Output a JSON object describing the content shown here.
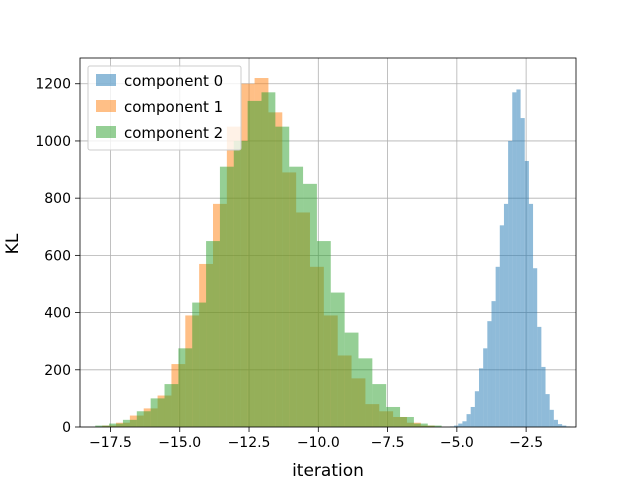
{
  "chart_data": {
    "type": "histogram",
    "title": "",
    "xlabel": "iteration",
    "ylabel": "KL",
    "xlim": [
      -18.6,
      -0.7
    ],
    "ylim": [
      0,
      1290
    ],
    "grid": true,
    "legend_position": "top-left",
    "x_ticks": [
      -17.5,
      -15.0,
      -12.5,
      -10.0,
      -7.5,
      -5.0,
      -2.5
    ],
    "x_tick_labels": [
      "−17.5",
      "−15.0",
      "−12.5",
      "−10.0",
      "−7.5",
      "−5.0",
      "−2.5"
    ],
    "y_ticks": [
      0,
      200,
      400,
      600,
      800,
      1000,
      1200
    ],
    "y_tick_labels": [
      "0",
      "200",
      "400",
      "600",
      "800",
      "1000",
      "1200"
    ],
    "series": [
      {
        "name": "component 0",
        "color": "#1f77b4",
        "alpha": 0.5,
        "bin_start": -5.25,
        "bin_width": 0.15,
        "counts": [
          2,
          5,
          12,
          20,
          45,
          70,
          125,
          205,
          275,
          370,
          440,
          560,
          705,
          780,
          1000,
          1170,
          1180,
          1080,
          930,
          780,
          555,
          350,
          210,
          115,
          60,
          25,
          10,
          5,
          2
        ]
      },
      {
        "name": "component 1",
        "color": "#ff7f0e",
        "alpha": 0.5,
        "bin_start": -17.8,
        "bin_width": 0.5,
        "counts": [
          5,
          15,
          40,
          65,
          110,
          220,
          390,
          570,
          780,
          1050,
          1200,
          1220,
          1100,
          890,
          750,
          560,
          390,
          250,
          170,
          80,
          55,
          35,
          15,
          5
        ]
      },
      {
        "name": "component 2",
        "color": "#2ca02c",
        "alpha": 0.5,
        "bin_start": -18.05,
        "bin_width": 0.5,
        "counts": [
          5,
          12,
          25,
          55,
          100,
          150,
          275,
          435,
          650,
          910,
          1000,
          1140,
          1170,
          1050,
          910,
          850,
          650,
          470,
          330,
          240,
          150,
          70,
          35,
          12,
          5
        ]
      }
    ]
  }
}
